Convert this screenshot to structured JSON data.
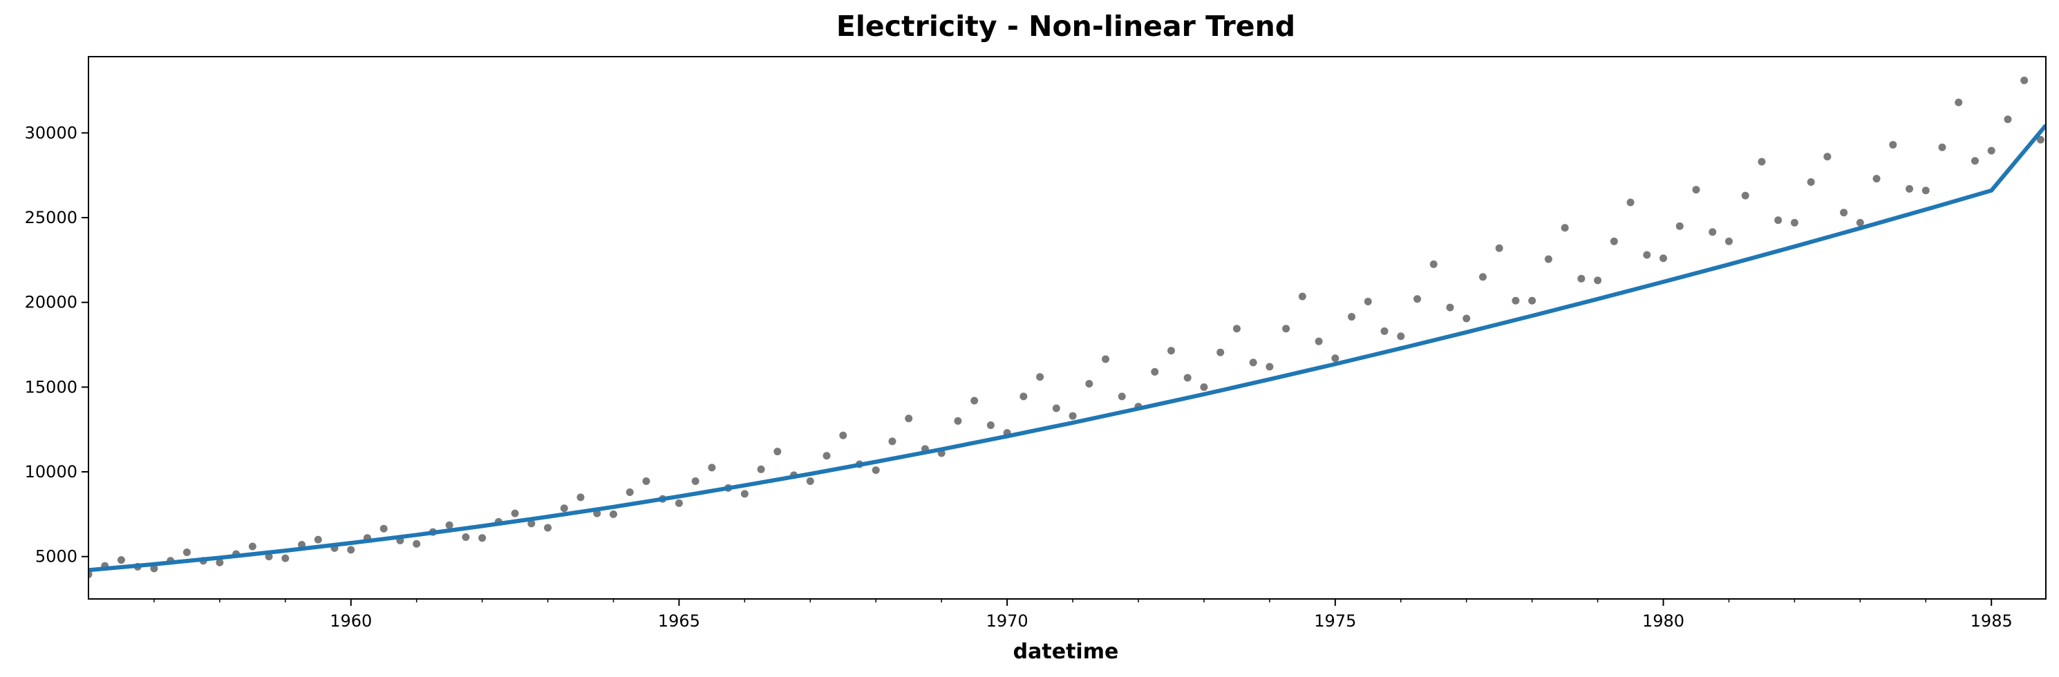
{
  "chart_data": {
    "type": "scatter",
    "title": "Electricity - Non-linear Trend",
    "xlabel": "datetime",
    "ylabel": "",
    "xlim": [
      1956.0,
      1985.83
    ],
    "ylim": [
      2500,
      34500
    ],
    "grid": false,
    "legend": "none",
    "x_ticks": [
      {
        "value": 1960,
        "label": "1960"
      },
      {
        "value": 1965,
        "label": "1965"
      },
      {
        "value": 1970,
        "label": "1970"
      },
      {
        "value": 1975,
        "label": "1975"
      },
      {
        "value": 1980,
        "label": "1980"
      },
      {
        "value": 1985,
        "label": "1985"
      }
    ],
    "x_minor_ticks": [
      1957,
      1958,
      1959,
      1961,
      1962,
      1963,
      1964,
      1966,
      1967,
      1968,
      1969,
      1971,
      1972,
      1973,
      1974,
      1976,
      1977,
      1978,
      1979,
      1981,
      1982,
      1983,
      1984
    ],
    "y_ticks": [
      {
        "value": 5000,
        "label": "5000"
      },
      {
        "value": 10000,
        "label": "10000"
      },
      {
        "value": 15000,
        "label": "15000"
      },
      {
        "value": 20000,
        "label": "20000"
      },
      {
        "value": 25000,
        "label": "25000"
      },
      {
        "value": 30000,
        "label": "30000"
      }
    ],
    "colors": {
      "points": "#7a7a7a",
      "trend": "#1f77b4",
      "axes": "#000000"
    },
    "series": [
      {
        "kind": "scatter",
        "x": [
          1956.0,
          1956.25,
          1956.5,
          1956.75,
          1957.0,
          1957.25,
          1957.5,
          1957.75,
          1958.0,
          1958.25,
          1958.5,
          1958.75,
          1959.0,
          1959.25,
          1959.5,
          1959.75,
          1960.0,
          1960.25,
          1960.5,
          1960.75,
          1961.0,
          1961.25,
          1961.5,
          1961.75,
          1962.0,
          1962.25,
          1962.5,
          1962.75,
          1963.0,
          1963.25,
          1963.5,
          1963.75,
          1964.0,
          1964.25,
          1964.5,
          1964.75,
          1965.0,
          1965.25,
          1965.5,
          1965.75,
          1966.0,
          1966.25,
          1966.5,
          1966.75,
          1967.0,
          1967.25,
          1967.5,
          1967.75,
          1968.0,
          1968.25,
          1968.5,
          1968.75,
          1969.0,
          1969.25,
          1969.5,
          1969.75,
          1970.0,
          1970.25,
          1970.5,
          1970.75,
          1971.0,
          1971.25,
          1971.5,
          1971.75,
          1972.0,
          1972.25,
          1972.5,
          1972.75,
          1973.0,
          1973.25,
          1973.5,
          1973.75,
          1974.0,
          1974.25,
          1974.5,
          1974.75,
          1975.0,
          1975.25,
          1975.5,
          1975.75,
          1976.0,
          1976.25,
          1976.5,
          1976.75,
          1977.0,
          1977.25,
          1977.5,
          1977.75,
          1978.0,
          1978.25,
          1978.5,
          1978.75,
          1979.0,
          1979.25,
          1979.5,
          1979.75,
          1980.0,
          1980.25,
          1980.5,
          1980.75,
          1981.0,
          1981.25,
          1981.5,
          1981.75,
          1982.0,
          1982.25,
          1982.5,
          1982.75,
          1983.0,
          1983.25,
          1983.5,
          1983.75,
          1984.0,
          1984.25,
          1984.5,
          1984.75,
          1985.0,
          1985.25,
          1985.5,
          1985.75
        ],
        "y": [
          3950,
          4450,
          4800,
          4400,
          4300,
          4750,
          5250,
          4750,
          4650,
          5150,
          5600,
          5000,
          4900,
          5700,
          6000,
          5500,
          5400,
          6100,
          6650,
          5950,
          5750,
          6450,
          6850,
          6150,
          6100,
          7050,
          7550,
          6950,
          6700,
          7850,
          8500,
          7550,
          7500,
          8800,
          9450,
          8400,
          8150,
          9450,
          10250,
          9050,
          8700,
          10150,
          11200,
          9800,
          9450,
          10950,
          12150,
          10450,
          10100,
          11800,
          13150,
          11350,
          11100,
          13000,
          14200,
          12750,
          12300,
          14450,
          15600,
          13750,
          13300,
          15200,
          16650,
          14450,
          13850,
          15900,
          17150,
          15550,
          15000,
          17050,
          18450,
          16450,
          16200,
          18450,
          20350,
          17700,
          16700,
          19150,
          20050,
          18300,
          18000,
          20200,
          22250,
          19700,
          19050,
          21500,
          23200,
          20100,
          20100,
          22550,
          24400,
          21400,
          21300,
          23600,
          25900,
          22800,
          22600,
          24500,
          26650,
          24150,
          23600,
          26300,
          28300,
          24850,
          24700,
          27100,
          28600,
          25300,
          24700,
          27300,
          29300,
          26700,
          26600,
          29150,
          31800,
          28350,
          28950,
          30800,
          33100,
          29600
        ]
      },
      {
        "kind": "line",
        "name": "",
        "x": [
          1956.0,
          1957.0,
          1958.0,
          1959.0,
          1960.0,
          1961.0,
          1962.0,
          1963.0,
          1964.0,
          1965.0,
          1966.0,
          1967.0,
          1968.0,
          1969.0,
          1970.0,
          1971.0,
          1972.0,
          1973.0,
          1974.0,
          1975.0,
          1976.0,
          1977.0,
          1978.0,
          1979.0,
          1980.0,
          1981.0,
          1982.0,
          1983.0,
          1984.0,
          1985.0,
          1985.83
        ],
        "y": [
          4200,
          4550,
          4930,
          5350,
          5800,
          6280,
          6800,
          7350,
          7930,
          8550,
          9200,
          9880,
          10590,
          11330,
          12100,
          12900,
          13730,
          14580,
          15460,
          16360,
          17290,
          18240,
          19210,
          20200,
          21210,
          22240,
          23300,
          24380,
          25480,
          26600,
          30450
        ]
      }
    ]
  }
}
